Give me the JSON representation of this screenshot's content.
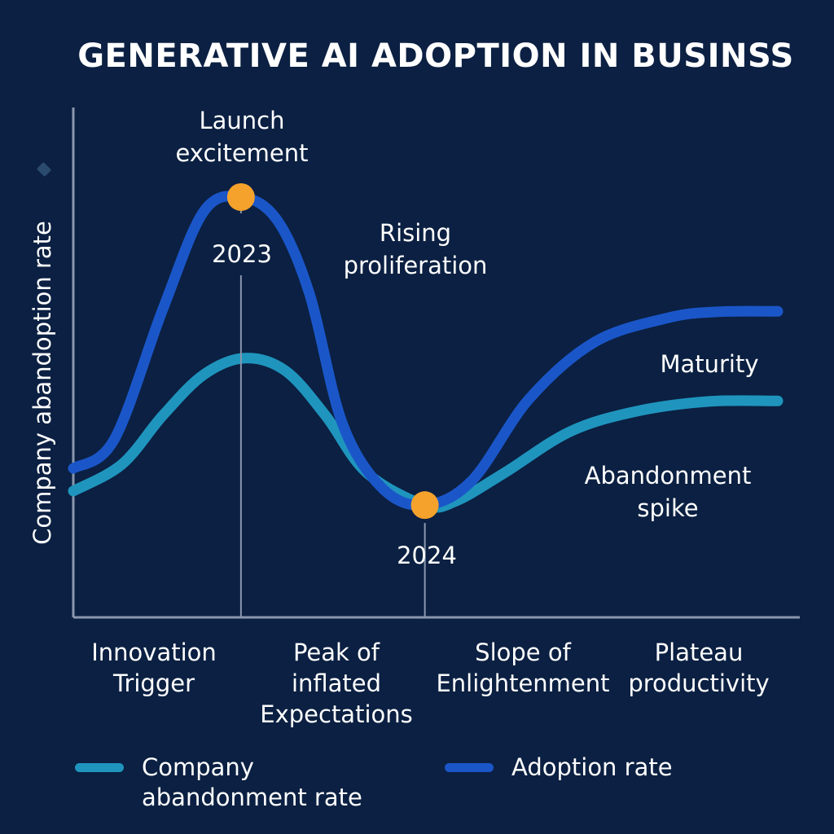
{
  "chart_data": {
    "type": "line",
    "title": "GENERATIVE AI ADOPTION IN BUSINSS",
    "xlabel": "",
    "ylabel": "Company abandoption rate",
    "xlim": [
      0,
      100
    ],
    "ylim": [
      0,
      100
    ],
    "grid": false,
    "legend_placement": "bottom",
    "categories": [
      {
        "label_lines": [
          "Innovation",
          "Trigger"
        ],
        "x": 11
      },
      {
        "label_lines": [
          "Peak of",
          "inflated",
          "Expectations"
        ],
        "x": 37.5
      },
      {
        "label_lines": [
          "Slope of",
          "Enlightenment"
        ],
        "x": 63.5
      },
      {
        "label_lines": [
          "Plateau",
          "productivity"
        ],
        "x": 88
      }
    ],
    "series": [
      {
        "name": "Adoption rate",
        "color": "#1b56c9",
        "points": [
          [
            0,
            29.6
          ],
          [
            5.8,
            35.3
          ],
          [
            12.7,
            61.2
          ],
          [
            18.5,
            80.6
          ],
          [
            23.8,
            83.5
          ],
          [
            28.9,
            79
          ],
          [
            33.5,
            64.4
          ],
          [
            38.2,
            38.5
          ],
          [
            43.9,
            25.6
          ],
          [
            49.9,
            22.3
          ],
          [
            56.6,
            27.2
          ],
          [
            64.7,
            43.4
          ],
          [
            74,
            54.7
          ],
          [
            84.4,
            59.5
          ],
          [
            91.3,
            60.7
          ],
          [
            100,
            60.8
          ]
        ]
      },
      {
        "name": "Company abandonment rate",
        "color": "#1f95be",
        "points": [
          [
            0,
            25.1
          ],
          [
            6.9,
            30.4
          ],
          [
            12.7,
            40.1
          ],
          [
            18.5,
            48.2
          ],
          [
            24.3,
            51.5
          ],
          [
            30.1,
            49
          ],
          [
            35.8,
            40.1
          ],
          [
            41.6,
            28.8
          ],
          [
            49.9,
            22.3
          ],
          [
            54.3,
            23.1
          ],
          [
            61.3,
            28.8
          ],
          [
            70.5,
            36.9
          ],
          [
            79.8,
            40.9
          ],
          [
            90.2,
            42.9
          ],
          [
            100,
            43
          ]
        ]
      }
    ],
    "markers": [
      {
        "label": "2023",
        "x": 23.8,
        "y": 83.5,
        "color": "#f5a22c"
      },
      {
        "label": "2024",
        "x": 49.9,
        "y": 22.3,
        "color": "#f5a22c"
      }
    ],
    "annotations": [
      {
        "lines": [
          "Launch",
          "excitement"
        ]
      },
      {
        "lines": [
          "Rising",
          "proliferation"
        ]
      },
      {
        "lines": [
          "Maturity"
        ]
      },
      {
        "lines": [
          "Abandonment",
          "spike"
        ]
      }
    ],
    "legend": [
      {
        "lines": [
          "Company",
          "abandonment rate"
        ],
        "color": "#1f95be"
      },
      {
        "lines": [
          "Adoption rate"
        ],
        "color": "#1b56c9"
      }
    ]
  }
}
